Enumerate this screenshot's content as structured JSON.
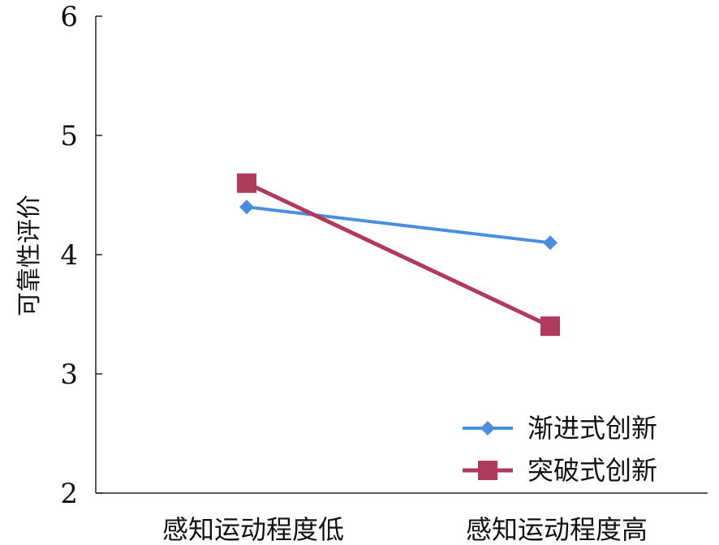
{
  "chart_data": {
    "type": "line",
    "ylabel": "可靠性评价",
    "categories": [
      "感知运动程度低",
      "感知运动程度高"
    ],
    "ylim": [
      2,
      6
    ],
    "yticks": [
      "2",
      "3",
      "4",
      "5",
      "6"
    ],
    "series": [
      {
        "name": "渐进式创新",
        "values": [
          4.4,
          4.1
        ],
        "color": "#4a8fdf",
        "marker": "diamond"
      },
      {
        "name": "突破式创新",
        "values": [
          4.6,
          3.4
        ],
        "color": "#b03a5b",
        "marker": "square"
      }
    ],
    "legend_position": "bottom-right",
    "grid": false
  }
}
